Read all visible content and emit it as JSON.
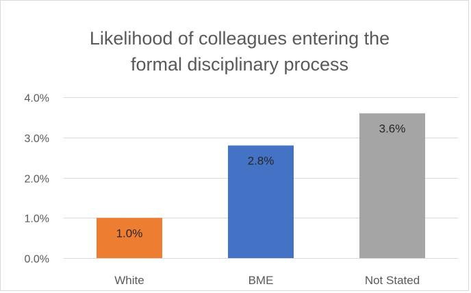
{
  "chart_data": {
    "type": "bar",
    "title_lines": [
      "Likelihood of colleagues entering the",
      "formal disciplinary process"
    ],
    "categories": [
      "White",
      "BME",
      "Not Stated"
    ],
    "values": [
      1.0,
      2.8,
      3.6
    ],
    "data_labels": [
      "1.0%",
      "2.8%",
      "3.6%"
    ],
    "bar_colors": [
      "#ed7d31",
      "#4472c4",
      "#a5a5a5"
    ],
    "ylim": [
      0,
      4
    ],
    "yticks": [
      0,
      1,
      2,
      3,
      4
    ],
    "ytick_labels": [
      "0.0%",
      "1.0%",
      "2.0%",
      "3.0%",
      "4.0%"
    ],
    "xlabel": "",
    "ylabel": "",
    "grid": true,
    "legend": "none"
  }
}
